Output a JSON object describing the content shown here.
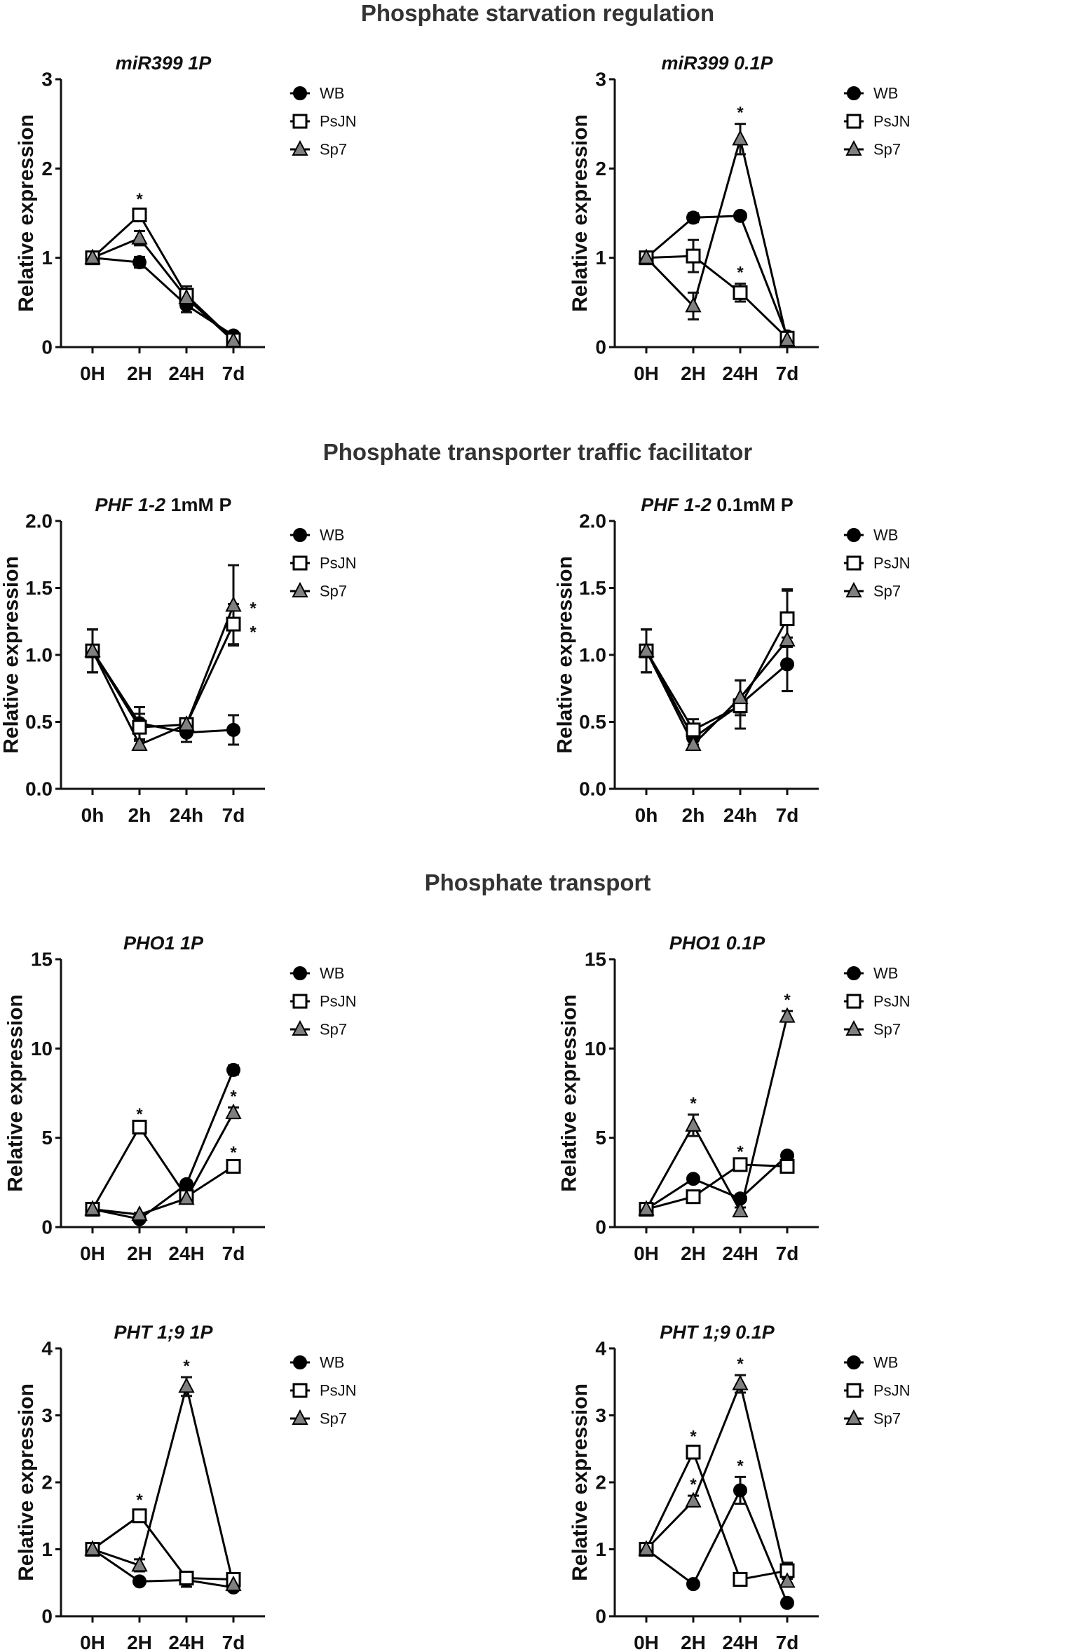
{
  "sections": [
    "Phosphate starvation regulation",
    "Phosphate transporter traffic facilitator",
    "Phosphate transport"
  ],
  "significance_marker": "*",
  "colors": {
    "WB": "#000000",
    "PsJN": "#ffffff",
    "Sp7": "#808080",
    "line": "#000000"
  },
  "chart_data": [
    {
      "type": "line",
      "title_italic": "miR399 1P",
      "title_rest": "",
      "ylabel": "Relative expression",
      "xlabel": "",
      "categories": [
        "0H",
        "2H",
        "24H",
        "7d"
      ],
      "ylim": [
        0,
        3
      ],
      "yticks": [
        "0",
        "1",
        "2",
        "3"
      ],
      "legend": "top-right",
      "series": [
        {
          "name": "WB",
          "marker": "circle",
          "values": [
            1,
            0.95,
            0.47,
            0.13
          ],
          "errors": [
            0.02,
            0.06,
            0.08,
            0.03
          ]
        },
        {
          "name": "PsJN",
          "marker": "square",
          "values": [
            1,
            1.48,
            0.58,
            0.08
          ],
          "errors": [
            0.02,
            0.05,
            0.1,
            0.02
          ]
        },
        {
          "name": "Sp7",
          "marker": "triangle",
          "values": [
            1,
            1.22,
            0.55,
            0.07
          ],
          "errors": [
            0.02,
            0.08,
            0.06,
            0.02
          ]
        }
      ],
      "stars": [
        {
          "series": "PsJN",
          "index": 1,
          "pos": "above"
        }
      ]
    },
    {
      "type": "line",
      "title_italic": "miR399 0.1P",
      "title_rest": "",
      "ylabel": "Relative expression",
      "xlabel": "",
      "categories": [
        "0H",
        "2H",
        "24H",
        "7d"
      ],
      "ylim": [
        0,
        3
      ],
      "yticks": [
        "0",
        "1",
        "2",
        "3"
      ],
      "legend": "top-right",
      "series": [
        {
          "name": "WB",
          "marker": "circle",
          "values": [
            1,
            1.45,
            1.47,
            0.12
          ],
          "errors": [
            0.02,
            0.05,
            0.03,
            0.03
          ]
        },
        {
          "name": "PsJN",
          "marker": "square",
          "values": [
            1,
            1.02,
            0.61,
            0.1
          ],
          "errors": [
            0.02,
            0.18,
            0.1,
            0.02
          ]
        },
        {
          "name": "Sp7",
          "marker": "triangle",
          "values": [
            1,
            0.46,
            2.33,
            0.08
          ],
          "errors": [
            0.02,
            0.15,
            0.17,
            0.02
          ]
        }
      ],
      "stars": [
        {
          "series": "Sp7",
          "index": 2,
          "pos": "above"
        },
        {
          "series": "PsJN",
          "index": 2,
          "pos": "above"
        }
      ]
    },
    {
      "type": "line",
      "title_italic": "PHF 1-2",
      "title_rest": " 1mM P",
      "ylabel": "Relative expression",
      "xlabel": "",
      "categories": [
        "0h",
        "2h",
        "24h",
        "7d"
      ],
      "ylim": [
        0,
        2
      ],
      "yticks": [
        "0.0",
        "0.5",
        "1.0",
        "1.5",
        "2.0"
      ],
      "legend": "top-right",
      "series": [
        {
          "name": "WB",
          "marker": "circle",
          "values": [
            1.03,
            0.49,
            0.42,
            0.44
          ],
          "errors": [
            0.16,
            0.12,
            0.07,
            0.11
          ]
        },
        {
          "name": "PsJN",
          "marker": "square",
          "values": [
            1.03,
            0.46,
            0.48,
            1.23
          ],
          "errors": [
            0.16,
            0.1,
            0.03,
            0.15
          ]
        },
        {
          "name": "Sp7",
          "marker": "triangle",
          "values": [
            1.03,
            0.33,
            0.48,
            1.37
          ],
          "errors": [
            0.16,
            0.03,
            0.03,
            0.3
          ]
        }
      ],
      "stars": [
        {
          "series": "Sp7",
          "index": 3,
          "pos": "right"
        },
        {
          "series": "PsJN",
          "index": 3,
          "pos": "right"
        }
      ]
    },
    {
      "type": "line",
      "title_italic": "PHF 1-2",
      "title_rest": " 0.1mM P",
      "ylabel": "Relative expression",
      "xlabel": "",
      "categories": [
        "0h",
        "2h",
        "24h",
        "7d"
      ],
      "ylim": [
        0,
        2
      ],
      "yticks": [
        "0.0",
        "0.5",
        "1.0",
        "1.5",
        "2.0"
      ],
      "legend": "top-right",
      "series": [
        {
          "name": "WB",
          "marker": "circle",
          "values": [
            1.03,
            0.38,
            0.63,
            0.93
          ],
          "errors": [
            0.16,
            0.05,
            0.18,
            0.2
          ]
        },
        {
          "name": "PsJN",
          "marker": "square",
          "values": [
            1.03,
            0.44,
            0.62,
            1.27
          ],
          "errors": [
            0.16,
            0.08,
            0.05,
            0.21
          ]
        },
        {
          "name": "Sp7",
          "marker": "triangle",
          "values": [
            1.03,
            0.33,
            0.68,
            1.11
          ],
          "errors": [
            0.16,
            0.03,
            0.13,
            0.38
          ]
        }
      ],
      "stars": []
    },
    {
      "type": "line",
      "title_italic": "PHO1 1P",
      "title_rest": "",
      "ylabel": "Relative expression",
      "xlabel": "",
      "categories": [
        "0H",
        "2H",
        "24H",
        "7d"
      ],
      "ylim": [
        0,
        15
      ],
      "yticks": [
        "0",
        "5",
        "10",
        "15"
      ],
      "legend": "top-right",
      "series": [
        {
          "name": "WB",
          "marker": "circle",
          "values": [
            1,
            0.45,
            2.4,
            8.8
          ],
          "errors": [
            0.05,
            0.1,
            0.15,
            0.25
          ]
        },
        {
          "name": "PsJN",
          "marker": "square",
          "values": [
            1,
            5.6,
            1.7,
            3.4
          ],
          "errors": [
            0.05,
            0.1,
            0.1,
            0.15
          ]
        },
        {
          "name": "Sp7",
          "marker": "triangle",
          "values": [
            1,
            0.7,
            1.6,
            6.4
          ],
          "errors": [
            0.05,
            0.1,
            0.1,
            0.3
          ]
        }
      ],
      "stars": [
        {
          "series": "PsJN",
          "index": 1,
          "pos": "above"
        },
        {
          "series": "Sp7",
          "index": 3,
          "pos": "above"
        },
        {
          "series": "PsJN",
          "index": 3,
          "pos": "above"
        }
      ]
    },
    {
      "type": "line",
      "title_italic": "PHO1 0.1P",
      "title_rest": "",
      "ylabel": "Relative expression",
      "xlabel": "",
      "categories": [
        "0H",
        "2H",
        "24H",
        "7d"
      ],
      "ylim": [
        0,
        15
      ],
      "yticks": [
        "0",
        "5",
        "10",
        "15"
      ],
      "legend": "top-right",
      "series": [
        {
          "name": "WB",
          "marker": "circle",
          "values": [
            1,
            2.7,
            1.6,
            4.0
          ],
          "errors": [
            0.05,
            0.1,
            0.1,
            0.15
          ]
        },
        {
          "name": "PsJN",
          "marker": "square",
          "values": [
            1,
            1.7,
            3.5,
            3.4
          ],
          "errors": [
            0.05,
            0.1,
            0.1,
            0.1
          ]
        },
        {
          "name": "Sp7",
          "marker": "triangle",
          "values": [
            1,
            5.7,
            0.9,
            11.8
          ],
          "errors": [
            0.05,
            0.6,
            0.2,
            0.3
          ]
        }
      ],
      "stars": [
        {
          "series": "Sp7",
          "index": 1,
          "pos": "above"
        },
        {
          "series": "PsJN",
          "index": 2,
          "pos": "above"
        },
        {
          "series": "Sp7",
          "index": 3,
          "pos": "above"
        }
      ]
    },
    {
      "type": "line",
      "title_italic": "PHT 1;9 1P",
      "title_rest": "",
      "ylabel": "Relative expression",
      "xlabel": "",
      "categories": [
        "0H",
        "2H",
        "24H",
        "7d"
      ],
      "ylim": [
        0,
        4
      ],
      "yticks": [
        "0",
        "1",
        "2",
        "3",
        "4"
      ],
      "legend": "top-right",
      "series": [
        {
          "name": "WB",
          "marker": "circle",
          "values": [
            1,
            0.52,
            0.54,
            0.43
          ],
          "errors": [
            0.03,
            0.05,
            0.1,
            0.03
          ]
        },
        {
          "name": "PsJN",
          "marker": "square",
          "values": [
            1,
            1.5,
            0.57,
            0.55
          ],
          "errors": [
            0.03,
            0.07,
            0.06,
            0.04
          ]
        },
        {
          "name": "Sp7",
          "marker": "triangle",
          "values": [
            1,
            0.76,
            3.43,
            0.47
          ],
          "errors": [
            0.03,
            0.09,
            0.14,
            0.03
          ]
        }
      ],
      "stars": [
        {
          "series": "PsJN",
          "index": 1,
          "pos": "above"
        },
        {
          "series": "Sp7",
          "index": 2,
          "pos": "above"
        }
      ]
    },
    {
      "type": "line",
      "title_italic": "PHT 1;9 0.1P",
      "title_rest": "",
      "ylabel": "Relative expression",
      "xlabel": "",
      "categories": [
        "0H",
        "2H",
        "24H",
        "7d"
      ],
      "ylim": [
        0,
        4
      ],
      "yticks": [
        "0",
        "1",
        "2",
        "3",
        "4"
      ],
      "legend": "top-right",
      "series": [
        {
          "name": "WB",
          "marker": "circle",
          "values": [
            1,
            0.48,
            1.88,
            0.2
          ],
          "errors": [
            0.03,
            0.03,
            0.2,
            0.03
          ]
        },
        {
          "name": "PsJN",
          "marker": "square",
          "values": [
            1,
            2.45,
            0.55,
            0.68
          ],
          "errors": [
            0.03,
            0.07,
            0.05,
            0.12
          ]
        },
        {
          "name": "Sp7",
          "marker": "triangle",
          "values": [
            1,
            1.72,
            3.47,
            0.52
          ],
          "errors": [
            0.03,
            0.08,
            0.13,
            0.05
          ]
        }
      ],
      "stars": [
        {
          "series": "PsJN",
          "index": 1,
          "pos": "above"
        },
        {
          "series": "Sp7",
          "index": 1,
          "pos": "above"
        },
        {
          "series": "WB",
          "index": 2,
          "pos": "above"
        },
        {
          "series": "Sp7",
          "index": 2,
          "pos": "above"
        }
      ]
    }
  ]
}
